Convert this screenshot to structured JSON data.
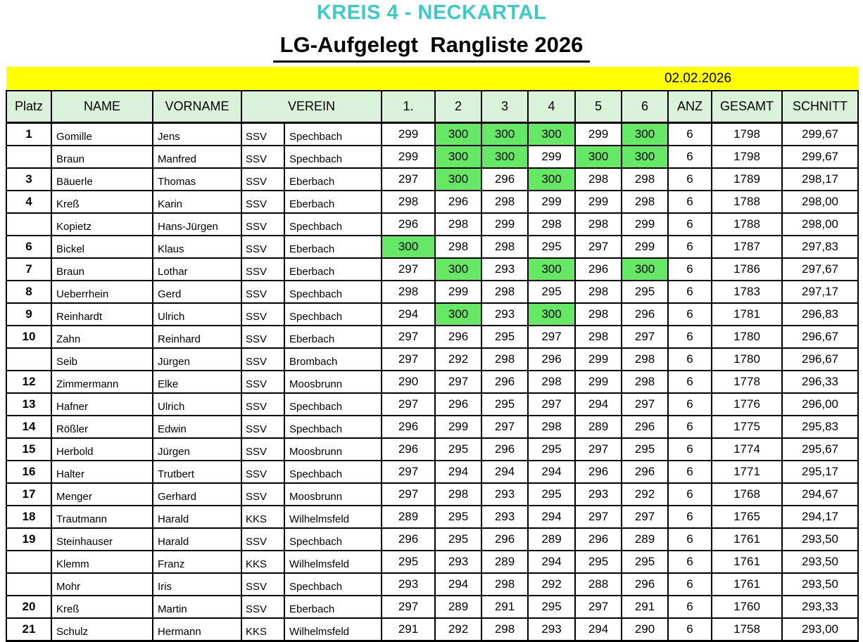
{
  "page": {
    "region_title": "KREIS 4 - NECKARTAL",
    "list_title": "LG-Aufgelegt  Rangliste 2026",
    "date": "02.02.2026"
  },
  "colors": {
    "region_title_color": "#3bcaca",
    "header_bg": "#d9f2d9",
    "score_300_highlight": "#66e866",
    "date_band_bg": "#ffff00"
  },
  "table": {
    "headers": [
      "Platz",
      "NAME",
      "VORNAME",
      "VEREIN",
      "1.",
      "2",
      "3",
      "4",
      "5",
      "6",
      "ANZ",
      "GESAMT",
      "SCHNITT"
    ],
    "highlight_rule": "score equal to 300 gets green background",
    "rows": [
      {
        "platz": "1",
        "name": "Gomille",
        "vorname": "Jens",
        "verein": "SSV",
        "ort": "Spechbach",
        "scores": [
          299,
          300,
          300,
          300,
          299,
          300
        ],
        "anz": "6",
        "gesamt": "1798",
        "schnitt": "299,67"
      },
      {
        "platz": "",
        "name": "Braun",
        "vorname": "Manfred",
        "verein": "SSV",
        "ort": "Spechbach",
        "scores": [
          299,
          300,
          300,
          299,
          300,
          300
        ],
        "anz": "6",
        "gesamt": "1798",
        "schnitt": "299,67"
      },
      {
        "platz": "3",
        "name": "Bäuerle",
        "vorname": "Thomas",
        "verein": "SSV",
        "ort": "Eberbach",
        "scores": [
          297,
          300,
          296,
          300,
          298,
          298
        ],
        "anz": "6",
        "gesamt": "1789",
        "schnitt": "298,17"
      },
      {
        "platz": "4",
        "name": "Kreß",
        "vorname": "Karin",
        "verein": "SSV",
        "ort": "Eberbach",
        "scores": [
          298,
          296,
          298,
          299,
          299,
          298
        ],
        "anz": "6",
        "gesamt": "1788",
        "schnitt": "298,00"
      },
      {
        "platz": "",
        "name": "Kopietz",
        "vorname": "Hans-Jürgen",
        "verein": "SSV",
        "ort": "Spechbach",
        "scores": [
          296,
          298,
          299,
          298,
          298,
          299
        ],
        "anz": "6",
        "gesamt": "1788",
        "schnitt": "298,00"
      },
      {
        "platz": "6",
        "name": "Bickel",
        "vorname": "Klaus",
        "verein": "SSV",
        "ort": "Eberbach",
        "scores": [
          300,
          298,
          298,
          295,
          297,
          299
        ],
        "anz": "6",
        "gesamt": "1787",
        "schnitt": "297,83"
      },
      {
        "platz": "7",
        "name": "Braun",
        "vorname": "Lothar",
        "verein": "SSV",
        "ort": "Eberbach",
        "scores": [
          297,
          300,
          293,
          300,
          296,
          300
        ],
        "anz": "6",
        "gesamt": "1786",
        "schnitt": "297,67"
      },
      {
        "platz": "8",
        "name": "Ueberrhein",
        "vorname": "Gerd",
        "verein": "SSV",
        "ort": "Spechbach",
        "scores": [
          298,
          299,
          298,
          295,
          298,
          295
        ],
        "anz": "6",
        "gesamt": "1783",
        "schnitt": "297,17"
      },
      {
        "platz": "9",
        "name": "Reinhardt",
        "vorname": "Ulrich",
        "verein": "SSV",
        "ort": "Spechbach",
        "scores": [
          294,
          300,
          293,
          300,
          298,
          296
        ],
        "anz": "6",
        "gesamt": "1781",
        "schnitt": "296,83"
      },
      {
        "platz": "10",
        "name": "Zahn",
        "vorname": "Reinhard",
        "verein": "SSV",
        "ort": "Eberbach",
        "scores": [
          297,
          296,
          295,
          297,
          298,
          297
        ],
        "anz": "6",
        "gesamt": "1780",
        "schnitt": "296,67"
      },
      {
        "platz": "",
        "name": "Seib",
        "vorname": "Jürgen",
        "verein": "SSV",
        "ort": "Brombach",
        "scores": [
          297,
          292,
          298,
          296,
          299,
          298
        ],
        "anz": "6",
        "gesamt": "1780",
        "schnitt": "296,67"
      },
      {
        "platz": "12",
        "name": "Zimmermann",
        "vorname": "Elke",
        "verein": "SSV",
        "ort": "Moosbrunn",
        "scores": [
          290,
          297,
          296,
          298,
          299,
          298
        ],
        "anz": "6",
        "gesamt": "1778",
        "schnitt": "296,33"
      },
      {
        "platz": "13",
        "name": "Hafner",
        "vorname": "Ulrich",
        "verein": "SSV",
        "ort": "Spechbach",
        "scores": [
          297,
          296,
          295,
          297,
          294,
          297
        ],
        "anz": "6",
        "gesamt": "1776",
        "schnitt": "296,00"
      },
      {
        "platz": "14",
        "name": "Rößler",
        "vorname": "Edwin",
        "verein": "SSV",
        "ort": "Spechbach",
        "scores": [
          296,
          299,
          297,
          298,
          289,
          296
        ],
        "anz": "6",
        "gesamt": "1775",
        "schnitt": "295,83"
      },
      {
        "platz": "15",
        "name": "Herbold",
        "vorname": "Jürgen",
        "verein": "SSV",
        "ort": "Moosbrunn",
        "scores": [
          296,
          295,
          296,
          295,
          297,
          295
        ],
        "anz": "6",
        "gesamt": "1774",
        "schnitt": "295,67"
      },
      {
        "platz": "16",
        "name": "Halter",
        "vorname": "Trutbert",
        "verein": "SSV",
        "ort": "Spechbach",
        "scores": [
          297,
          294,
          294,
          294,
          296,
          296
        ],
        "anz": "6",
        "gesamt": "1771",
        "schnitt": "295,17"
      },
      {
        "platz": "17",
        "name": "Menger",
        "vorname": "Gerhard",
        "verein": "SSV",
        "ort": "Moosbrunn",
        "scores": [
          297,
          298,
          293,
          295,
          293,
          292
        ],
        "anz": "6",
        "gesamt": "1768",
        "schnitt": "294,67"
      },
      {
        "platz": "18",
        "name": "Trautmann",
        "vorname": "Harald",
        "verein": "KKS",
        "ort": "Wilhelmsfeld",
        "scores": [
          289,
          295,
          293,
          294,
          297,
          297
        ],
        "anz": "6",
        "gesamt": "1765",
        "schnitt": "294,17"
      },
      {
        "platz": "19",
        "name": "Steinhauser",
        "vorname": "Harald",
        "verein": "SSV",
        "ort": "Spechbach",
        "scores": [
          296,
          295,
          296,
          289,
          296,
          289
        ],
        "anz": "6",
        "gesamt": "1761",
        "schnitt": "293,50"
      },
      {
        "platz": "",
        "name": "Klemm",
        "vorname": "Franz",
        "verein": "KKS",
        "ort": "Wilhelmsfeld",
        "scores": [
          295,
          293,
          289,
          294,
          295,
          295
        ],
        "anz": "6",
        "gesamt": "1761",
        "schnitt": "293,50"
      },
      {
        "platz": "",
        "name": "Mohr",
        "vorname": "Iris",
        "verein": "SSV",
        "ort": "Spechbach",
        "scores": [
          293,
          294,
          298,
          292,
          288,
          296
        ],
        "anz": "6",
        "gesamt": "1761",
        "schnitt": "293,50"
      },
      {
        "platz": "20",
        "name": "Kreß",
        "vorname": "Martin",
        "verein": "SSV",
        "ort": "Eberbach",
        "scores": [
          297,
          289,
          291,
          295,
          297,
          291
        ],
        "anz": "6",
        "gesamt": "1760",
        "schnitt": "293,33"
      },
      {
        "platz": "21",
        "name": "Schulz",
        "vorname": "Hermann",
        "verein": "KKS",
        "ort": "Wilhelmsfeld",
        "scores": [
          291,
          292,
          298,
          293,
          294,
          290
        ],
        "anz": "6",
        "gesamt": "1758",
        "schnitt": "293,00"
      }
    ]
  }
}
